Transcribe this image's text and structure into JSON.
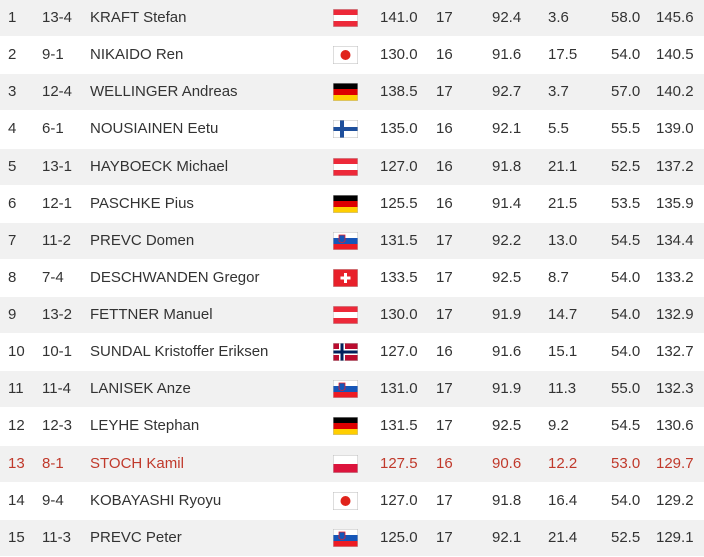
{
  "table": {
    "rows": [
      [
        "1",
        "13-4",
        "KRAFT Stefan",
        "141.0",
        "17",
        "92.4",
        "3.6",
        "58.0",
        "145.6"
      ],
      [
        "2",
        "9-1",
        "NIKAIDO Ren",
        "130.0",
        "16",
        "91.6",
        "17.5",
        "54.0",
        "140.5"
      ],
      [
        "3",
        "12-4",
        "WELLINGER Andreas",
        "138.5",
        "17",
        "92.7",
        "3.7",
        "57.0",
        "140.2"
      ],
      [
        "4",
        "6-1",
        "NOUSIAINEN Eetu",
        "135.0",
        "16",
        "92.1",
        "5.5",
        "55.5",
        "139.0"
      ],
      [
        "5",
        "13-1",
        "HAYBOECK Michael",
        "127.0",
        "16",
        "91.8",
        "21.1",
        "52.5",
        "137.2"
      ],
      [
        "6",
        "12-1",
        "PASCHKE Pius",
        "125.5",
        "16",
        "91.4",
        "21.5",
        "53.5",
        "135.9"
      ],
      [
        "7",
        "11-2",
        "PREVC Domen",
        "131.5",
        "17",
        "92.2",
        "13.0",
        "54.5",
        "134.4"
      ],
      [
        "8",
        "7-4",
        "DESCHWANDEN Gregor",
        "133.5",
        "17",
        "92.5",
        "8.7",
        "54.0",
        "133.2"
      ],
      [
        "9",
        "13-2",
        "FETTNER Manuel",
        "130.0",
        "17",
        "91.9",
        "14.7",
        "54.0",
        "132.9"
      ],
      [
        "10",
        "10-1",
        "SUNDAL Kristoffer Eriksen",
        "127.0",
        "16",
        "91.6",
        "15.1",
        "54.0",
        "132.7"
      ],
      [
        "11",
        "11-4",
        "LANISEK Anze",
        "131.0",
        "17",
        "91.9",
        "11.3",
        "55.0",
        "132.3"
      ],
      [
        "12",
        "12-3",
        "LEYHE Stephan",
        "131.5",
        "17",
        "92.5",
        "9.2",
        "54.5",
        "130.6"
      ],
      [
        "13",
        "8-1",
        "STOCH Kamil",
        "127.5",
        "16",
        "90.6",
        "12.2",
        "53.0",
        "129.7"
      ],
      [
        "14",
        "9-4",
        "KOBAYASHI Ryoyu",
        "127.0",
        "17",
        "91.8",
        "16.4",
        "54.0",
        "129.2"
      ],
      [
        "15",
        "11-3",
        "PREVC Peter",
        "125.0",
        "17",
        "92.1",
        "21.4",
        "52.5",
        "129.1"
      ]
    ]
  }
}
